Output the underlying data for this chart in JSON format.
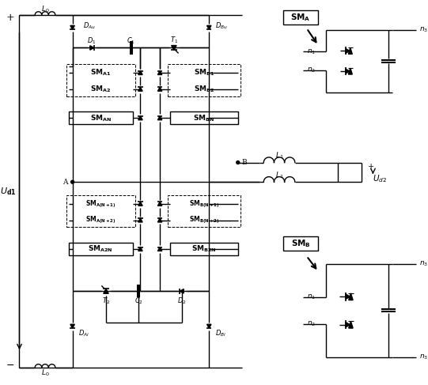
{
  "fig_width": 5.41,
  "fig_height": 4.87,
  "dpi": 100,
  "bg_color": "#ffffff",
  "line_color": "#000000"
}
